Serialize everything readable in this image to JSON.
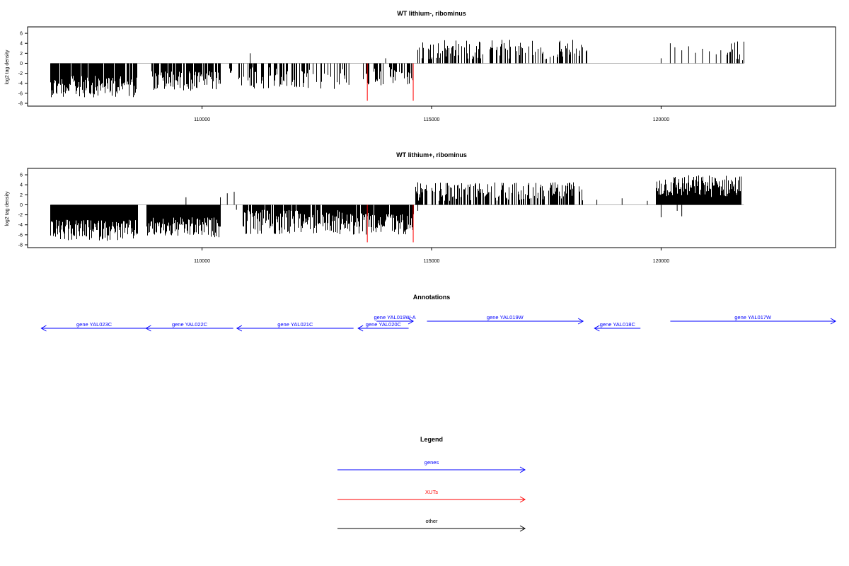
{
  "colors": {
    "gene": "#0000ff",
    "xut": "#ff0000",
    "other": "#000000",
    "zero_line": "#9e9e9e"
  },
  "chart_data": [
    {
      "type": "bar",
      "title": "WT lithium-, ribominus",
      "ylabel": "log2 tag density",
      "xlim": [
        106200,
        123800
      ],
      "ylim": [
        -8,
        7
      ],
      "yticks": [
        -8,
        -6,
        -4,
        -2,
        0,
        2,
        4,
        6
      ],
      "xticks": [
        110000,
        115000,
        120000
      ],
      "grid": false,
      "markers": [
        113600,
        114600
      ],
      "segments": [
        {
          "start": 106700,
          "end": 108600,
          "sign": -1,
          "min": 2.5,
          "max": 6.8,
          "density": 0.9
        },
        {
          "start": 108900,
          "end": 110400,
          "sign": -1,
          "min": 1.5,
          "max": 5.5,
          "density": 0.8
        },
        {
          "start": 110600,
          "end": 110650,
          "sign": -1,
          "min": 1.0,
          "max": 2.0,
          "density": 1.0
        },
        {
          "start": 110800,
          "end": 113150,
          "sign": -1,
          "min": 0.8,
          "max": 5.2,
          "density": 0.45
        },
        {
          "start": 113500,
          "end": 114600,
          "sign": -1,
          "min": 0.8,
          "max": 4.5,
          "density": 0.5
        },
        {
          "start": 114700,
          "end": 118400,
          "sign": 1,
          "min": 0.8,
          "max": 4.8,
          "density": 0.45
        },
        {
          "start": 121400,
          "end": 121800,
          "sign": 1,
          "min": 0.5,
          "max": 4.5,
          "density": 0.5
        }
      ],
      "spikes": [
        {
          "x": 111050,
          "y": 2.0
        },
        {
          "x": 113200,
          "y": -4.3
        },
        {
          "x": 114000,
          "y": 1.0
        },
        {
          "x": 120000,
          "y": 1.0
        },
        {
          "x": 120200,
          "y": 4.0
        },
        {
          "x": 120300,
          "y": 3.2
        },
        {
          "x": 120450,
          "y": 2.6
        },
        {
          "x": 120600,
          "y": 3.4
        },
        {
          "x": 120750,
          "y": 2.1
        },
        {
          "x": 120900,
          "y": 2.9
        },
        {
          "x": 121050,
          "y": 2.4
        },
        {
          "x": 121200,
          "y": 1.8
        },
        {
          "x": 121300,
          "y": 2.6
        }
      ]
    },
    {
      "type": "bar",
      "title": "WT lithium+, ribominus",
      "ylabel": "log2 tag density",
      "xlim": [
        106200,
        123800
      ],
      "ylim": [
        -8,
        7
      ],
      "yticks": [
        -8,
        -6,
        -4,
        -2,
        0,
        2,
        4,
        6
      ],
      "xticks": [
        110000,
        115000,
        120000
      ],
      "grid": false,
      "markers": [
        113600,
        114600
      ],
      "segments": [
        {
          "start": 106700,
          "end": 108600,
          "sign": -1,
          "min": 3.0,
          "max": 7.2,
          "density": 1.0
        },
        {
          "start": 108800,
          "end": 110400,
          "sign": -1,
          "min": 2.5,
          "max": 6.5,
          "density": 1.0
        },
        {
          "start": 110900,
          "end": 113000,
          "sign": -1,
          "min": 1.0,
          "max": 6.0,
          "density": 0.9
        },
        {
          "start": 113000,
          "end": 114600,
          "sign": -1,
          "min": 1.5,
          "max": 6.0,
          "density": 0.9
        },
        {
          "start": 114650,
          "end": 118300,
          "sign": 1,
          "min": 0.8,
          "max": 4.5,
          "density": 0.65
        },
        {
          "start": 119900,
          "end": 121750,
          "sign": 1,
          "min": 1.5,
          "max": 6.0,
          "density": 1.0
        }
      ],
      "spikes": [
        {
          "x": 109650,
          "y": 1.5
        },
        {
          "x": 110400,
          "y": 1.5
        },
        {
          "x": 110550,
          "y": 2.3
        },
        {
          "x": 110700,
          "y": 2.6
        },
        {
          "x": 110750,
          "y": -1.0
        },
        {
          "x": 114700,
          "y": -1.2
        },
        {
          "x": 118600,
          "y": 1.0
        },
        {
          "x": 119150,
          "y": 1.3
        },
        {
          "x": 119700,
          "y": 0.8
        },
        {
          "x": 120000,
          "y": -2.5
        },
        {
          "x": 120350,
          "y": -1.2
        },
        {
          "x": 120450,
          "y": -2.3
        }
      ]
    }
  ],
  "annotations": {
    "title": "Annotations",
    "genes": [
      {
        "label": "gene YAL023C",
        "start": 106500,
        "end": 108800,
        "strand": "-",
        "row": 0
      },
      {
        "label": "gene YAL022C",
        "start": 108780,
        "end": 110680,
        "strand": "-",
        "row": 0
      },
      {
        "label": "gene YAL021C",
        "start": 110760,
        "end": 113300,
        "strand": "-",
        "row": 0
      },
      {
        "label": "gene YAL020C",
        "start": 113400,
        "end": 114500,
        "strand": "-",
        "row": 0
      },
      {
        "label": "gene YAL019W-A",
        "start": 113800,
        "end": 114600,
        "strand": "+",
        "row": 1
      },
      {
        "label": "gene YAL019W",
        "start": 114900,
        "end": 118300,
        "strand": "+",
        "row": 1
      },
      {
        "label": "gene YAL018C",
        "start": 118550,
        "end": 119550,
        "strand": "-",
        "row": 0
      },
      {
        "label": "gene YAL017W",
        "start": 120200,
        "end": 123800,
        "strand": "+",
        "row": 1
      }
    ]
  },
  "legend": {
    "title": "Legend",
    "items": [
      {
        "label": "genes",
        "kind": "gene"
      },
      {
        "label": "XUTs",
        "kind": "xut"
      },
      {
        "label": "other",
        "kind": "other"
      }
    ]
  }
}
